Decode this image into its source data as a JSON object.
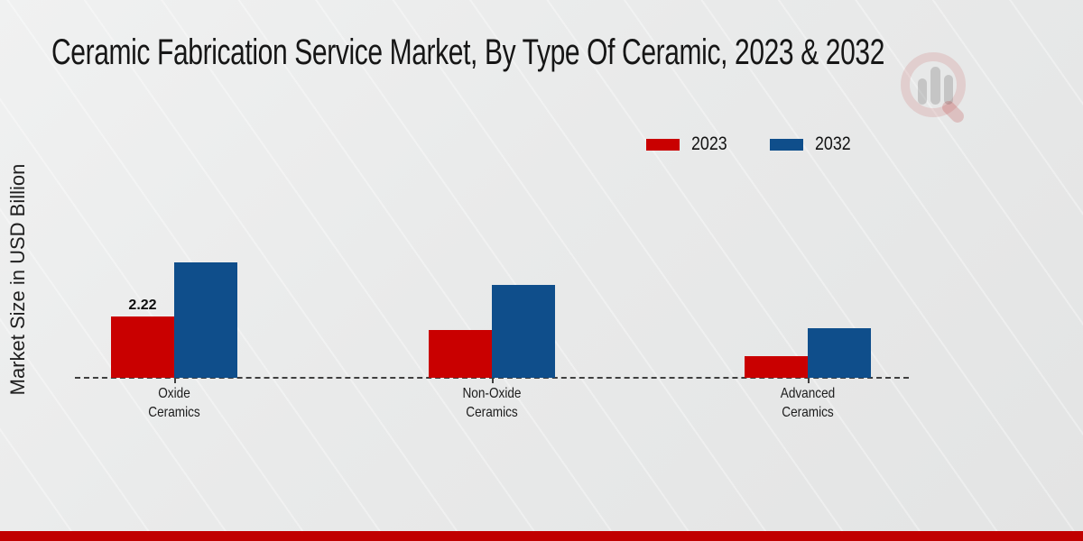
{
  "page": {
    "title": "Ceramic Fabrication Service Market, By Type Of Ceramic, 2023 & 2032",
    "ylabel": "Market Size in USD Billion",
    "footer_color": "#c00000",
    "watermark_icon": "mrfr-magnifier-barchart-logo"
  },
  "chart_data": {
    "type": "bar",
    "title": "Ceramic Fabrication Service Market, By Type Of Ceramic, 2023 & 2032",
    "xlabel": "",
    "ylabel": "Market Size in USD Billion",
    "categories": [
      "Oxide Ceramics",
      "Non-Oxide Ceramics",
      "Advanced Ceramics"
    ],
    "series": [
      {
        "name": "2023",
        "color": "#c90000",
        "values": [
          2.22,
          1.73,
          0.78
        ]
      },
      {
        "name": "2032",
        "color": "#0f4e8b",
        "values": [
          4.18,
          3.36,
          1.8
        ]
      }
    ],
    "data_labels": [
      {
        "series": "2023",
        "category": "Oxide Ceramics",
        "text": "2.22"
      }
    ],
    "ylim": [
      0,
      4.5
    ],
    "grid": false,
    "legend_position": "top-right",
    "baseline_style": "dashed",
    "axis_ticks": "category-center"
  }
}
